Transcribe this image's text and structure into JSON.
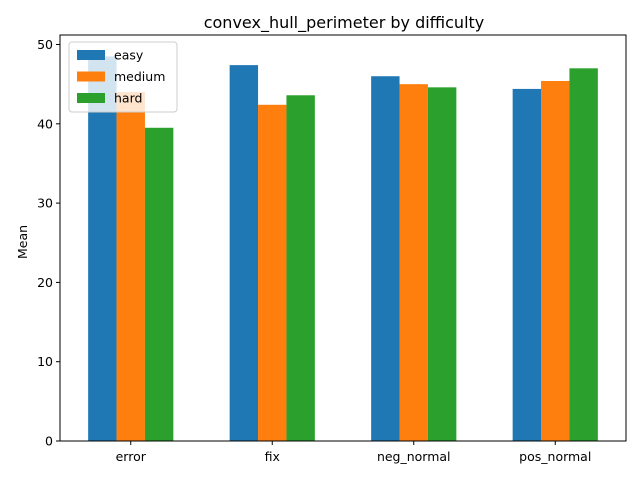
{
  "chart_data": {
    "type": "bar",
    "title": "convex_hull_perimeter by difficulty",
    "xlabel": "",
    "ylabel": "Mean",
    "categories": [
      "error",
      "fix",
      "neg_normal",
      "pos_normal"
    ],
    "ylim": [
      0,
      51.2
    ],
    "yticks": [
      0,
      10,
      20,
      30,
      40,
      50
    ],
    "grid": false,
    "legend_position": "top-left",
    "series": [
      {
        "name": "easy",
        "color": "#1f77b4",
        "values": [
          48.5,
          47.4,
          46.0,
          44.4
        ]
      },
      {
        "name": "medium",
        "color": "#ff7f0e",
        "values": [
          44.0,
          42.4,
          45.0,
          45.4
        ]
      },
      {
        "name": "hard",
        "color": "#2ca02c",
        "values": [
          39.5,
          43.6,
          44.6,
          47.0
        ]
      }
    ]
  }
}
